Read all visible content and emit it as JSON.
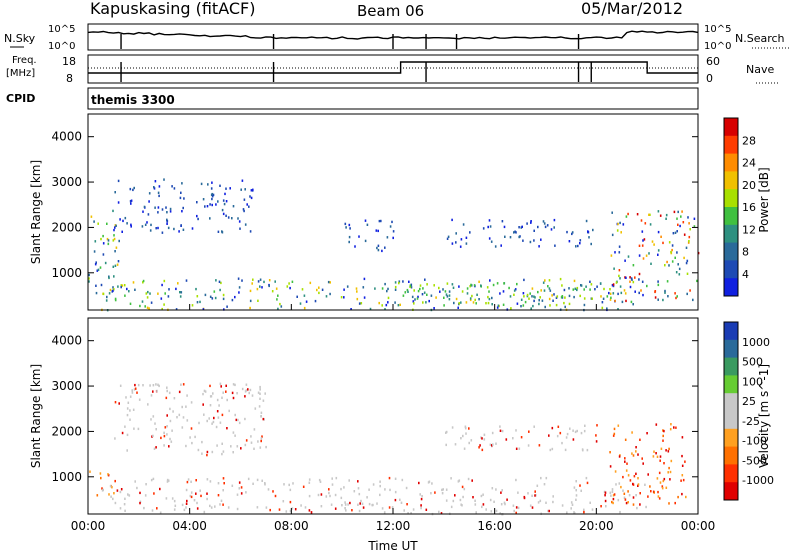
{
  "header": {
    "radar": "Kapuskasing (fitACF)",
    "beam": "Beam 06",
    "date": "05/Mar/2012"
  },
  "noise_panel": {
    "left_label": "N.Sky",
    "right_label": "N.Search",
    "tick_top": "10^5",
    "tick_bottom": "10^0"
  },
  "freq_panel": {
    "left_label_1": "Freq.",
    "left_label_2": "[MHz]",
    "right_label": "Nave",
    "left_ticks": [
      "18",
      "8"
    ],
    "right_ticks": [
      "60",
      "0"
    ]
  },
  "cpid": {
    "label": "CPID",
    "value": "themis 3300"
  },
  "chart_data": [
    {
      "type": "heatmap",
      "name": "power",
      "ylabel": "Slant Range [km]",
      "ylim": [
        180,
        4500
      ],
      "yticks": [
        1000,
        2000,
        3000,
        4000
      ],
      "xlim": [
        0,
        24
      ],
      "colorbar": {
        "label": "Power [dB]",
        "ticks": [
          "28",
          "24",
          "20",
          "16",
          "12",
          "8",
          "4"
        ],
        "colors": [
          "#d70000",
          "#ff3c00",
          "#ff8c00",
          "#f0c000",
          "#a8e000",
          "#40c040",
          "#2e9080",
          "#2a6a9a",
          "#1e4ab4",
          "#1020e0"
        ]
      },
      "regions": [
        {
          "t0": 0.0,
          "t1": 1.2,
          "r0": 300,
          "r1": 2400,
          "level": "mixed"
        },
        {
          "t0": 1.0,
          "t1": 6.5,
          "r0": 1900,
          "r1": 3100,
          "level": "low"
        },
        {
          "t0": 0.5,
          "t1": 22.0,
          "r0": 200,
          "r1": 900,
          "level": "mixed"
        },
        {
          "t0": 11.5,
          "t1": 21.0,
          "r0": 300,
          "r1": 800,
          "level": "mid"
        },
        {
          "t0": 10.0,
          "t1": 12.0,
          "r0": 1500,
          "r1": 2200,
          "level": "low"
        },
        {
          "t0": 14.0,
          "t1": 20.0,
          "r0": 1600,
          "r1": 2200,
          "level": "low"
        },
        {
          "t0": 20.5,
          "t1": 24.0,
          "r0": 400,
          "r1": 2400,
          "level": "high"
        }
      ]
    },
    {
      "type": "heatmap",
      "name": "velocity",
      "xlabel": "Time UT",
      "ylabel": "Slant Range [km]",
      "ylim": [
        180,
        4500
      ],
      "yticks": [
        1000,
        2000,
        3000,
        4000
      ],
      "xlim": [
        0,
        24
      ],
      "xticks": [
        "00:00",
        "04:00",
        "08:00",
        "12:00",
        "16:00",
        "20:00",
        "00:00"
      ],
      "colorbar": {
        "label": "Velocity [m s^-1]",
        "ticks": [
          "1000",
          "500",
          "100",
          "25",
          "-25",
          "-100",
          "-500",
          "-1000"
        ],
        "colors": [
          "#1a3cb4",
          "#2a6a9a",
          "#3a9a60",
          "#66cc33",
          "#c8c8c8",
          "#c8c8c8",
          "#ffa020",
          "#ff7000",
          "#ff3000",
          "#e00000"
        ]
      },
      "regions": [
        {
          "t0": 0.0,
          "t1": 1.0,
          "r0": 600,
          "r1": 1200,
          "level": "away"
        },
        {
          "t0": 1.0,
          "t1": 7.0,
          "r0": 1500,
          "r1": 3100,
          "level": "ground"
        },
        {
          "t0": 0.5,
          "t1": 22.0,
          "r0": 200,
          "r1": 1000,
          "level": "ground"
        },
        {
          "t0": 20.5,
          "t1": 23.5,
          "r0": 400,
          "r1": 2200,
          "level": "away"
        },
        {
          "t0": 14.0,
          "t1": 20.0,
          "r0": 1600,
          "r1": 2200,
          "level": "ground"
        }
      ]
    }
  ]
}
